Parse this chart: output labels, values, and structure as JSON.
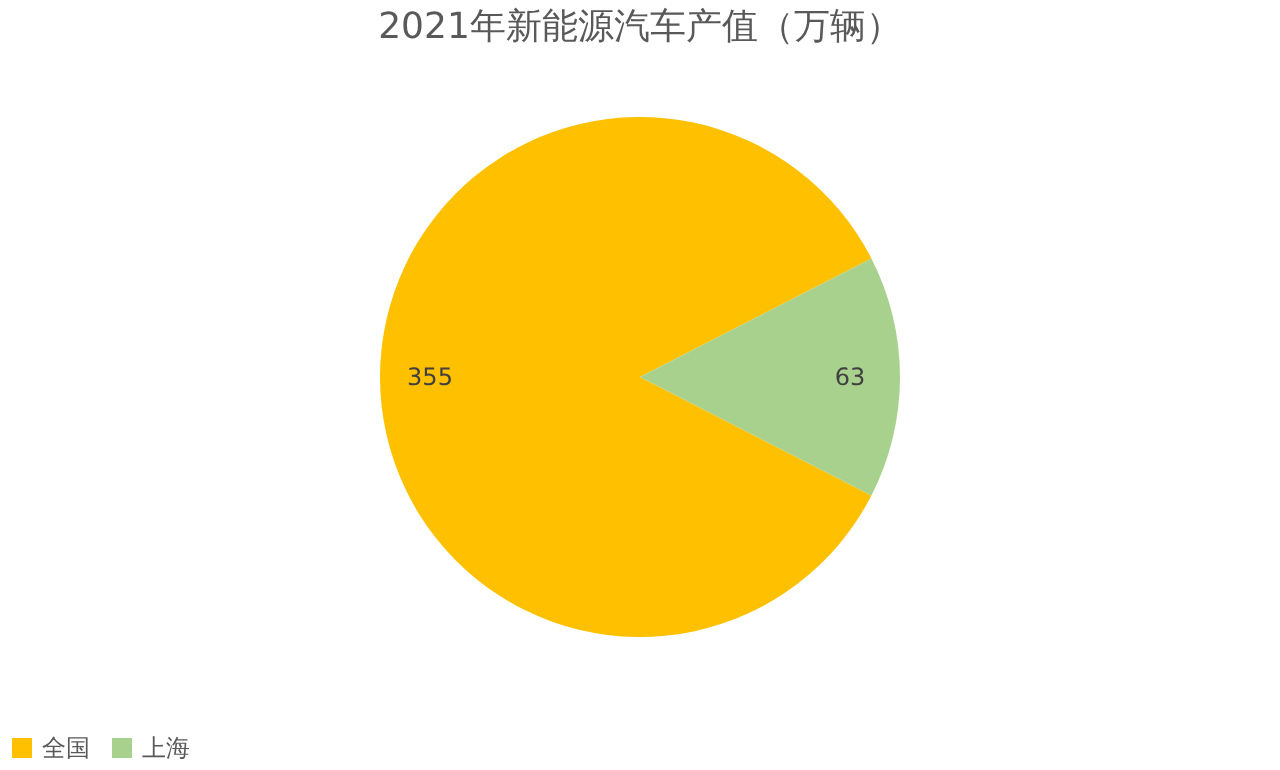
{
  "chart_data": {
    "type": "pie",
    "title": "2021年新能源汽车产值（万辆）",
    "categories": [
      "全国",
      "上海"
    ],
    "values": [
      355,
      63
    ],
    "colors": [
      "#ffc000",
      "#a9d18e"
    ],
    "data_labels": true,
    "legend": "bottom"
  }
}
